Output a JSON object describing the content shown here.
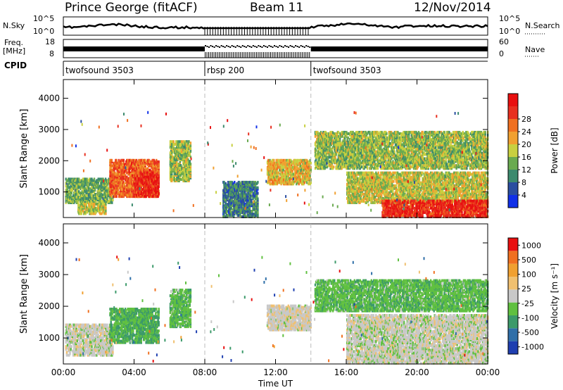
{
  "header": {
    "station": "Prince George (fitACF)",
    "beam": "Beam 11",
    "date": "12/Nov/2014"
  },
  "top_panels": {
    "nsky_label": "N.Sky",
    "nsky_tick_top": "10^5",
    "nsky_tick_bottom": "10^0",
    "nsearch_label": "N.Search",
    "nsearch_tick_top": "10^5",
    "nsearch_tick_bottom": "10^0",
    "freq_label": "Freq.",
    "freq_unit": "[MHz]",
    "freq_tick_top": "18",
    "freq_tick_bottom": "8",
    "nave_label": "Nave",
    "nave_tick_top": "60",
    "nave_tick_bottom": "0",
    "cpid_label": "CPID",
    "cpid_segments": [
      "twofsound 3503",
      "rbsp 200",
      "twofsound 3503"
    ]
  },
  "power_scale": {
    "label": "Power [dB]",
    "ticks": [
      "4",
      "8",
      "12",
      "16",
      "20",
      "24",
      "28"
    ],
    "colors": [
      "#1030e8",
      "#2a4ea0",
      "#3c8a6e",
      "#6aaa50",
      "#c8d040",
      "#f0a030",
      "#f07020",
      "#e83020",
      "#e81010"
    ]
  },
  "velocity_scale": {
    "label": "Velocity [m s⁻¹]",
    "ticks": [
      "1000",
      "500",
      "100",
      "25",
      "-25",
      "-100",
      "-500",
      "-1000"
    ],
    "colors": [
      "#1f3fb0",
      "#2f6fa8",
      "#3c9a6a",
      "#60c040",
      "#c8c8c8",
      "#f0c070",
      "#f0a030",
      "#f07020",
      "#e81010"
    ]
  },
  "chart_data": [
    {
      "type": "heatmap",
      "title": "Power",
      "xlabel": "Time UT",
      "ylabel": "Slant Range [km]",
      "xticks": [
        "00:00",
        "04:00",
        "08:00",
        "12:00",
        "16:00",
        "20:00",
        "00:00"
      ],
      "yticks": [
        "1000",
        "2000",
        "3000",
        "4000"
      ],
      "xlim_hours": [
        0,
        24
      ],
      "ylim_km": [
        180,
        4600
      ],
      "mode_change_hours": [
        8,
        14
      ],
      "scatter_regions": [
        {
          "t0": 0.1,
          "t1": 2.8,
          "r0": 700,
          "r1": 1500,
          "dB": 12
        },
        {
          "t0": 0.8,
          "t1": 2.4,
          "r0": 350,
          "r1": 700,
          "dB": 16
        },
        {
          "t0": 2.6,
          "t1": 5.4,
          "r0": 900,
          "r1": 2100,
          "dB": 24
        },
        {
          "t0": 4.0,
          "t1": 5.4,
          "r0": 900,
          "r1": 1700,
          "dB": 28
        },
        {
          "t0": 6.0,
          "t1": 7.2,
          "r0": 1400,
          "r1": 2700,
          "dB": 14
        },
        {
          "t0": 9.0,
          "t1": 11.0,
          "r0": 250,
          "r1": 1400,
          "dB": 8
        },
        {
          "t0": 11.5,
          "t1": 14.0,
          "r0": 1300,
          "r1": 2100,
          "dB": 18
        },
        {
          "t0": 14.2,
          "t1": 24.0,
          "r0": 1800,
          "r1": 3000,
          "dB": 14
        },
        {
          "t0": 16.0,
          "t1": 24.0,
          "r0": 700,
          "r1": 1700,
          "dB": 16
        },
        {
          "t0": 18.0,
          "t1": 24.0,
          "r0": 250,
          "r1": 800,
          "dB": 28
        }
      ]
    },
    {
      "type": "heatmap",
      "title": "Velocity",
      "xlabel": "Time UT",
      "ylabel": "Slant Range [km]",
      "xticks": [
        "00:00",
        "04:00",
        "08:00",
        "12:00",
        "16:00",
        "20:00",
        "00:00"
      ],
      "yticks": [
        "1000",
        "2000",
        "3000",
        "4000"
      ],
      "xlim_hours": [
        0,
        24
      ],
      "ylim_km": [
        180,
        4600
      ],
      "mode_change_hours": [
        8,
        14
      ],
      "scatter_regions": [
        {
          "t0": 0.1,
          "t1": 2.8,
          "r0": 500,
          "r1": 1500,
          "vel": 0
        },
        {
          "t0": 2.6,
          "t1": 5.4,
          "r0": 900,
          "r1": 2000,
          "vel": -400
        },
        {
          "t0": 6.0,
          "t1": 7.2,
          "r0": 1400,
          "r1": 2600,
          "vel": -300
        },
        {
          "t0": 11.5,
          "t1": 14.0,
          "r0": 1300,
          "r1": 2100,
          "vel": 50
        },
        {
          "t0": 14.2,
          "t1": 24.0,
          "r0": 1900,
          "r1": 2900,
          "vel": -300
        },
        {
          "t0": 16.0,
          "t1": 24.0,
          "r0": 250,
          "r1": 1800,
          "vel": 0
        }
      ]
    }
  ],
  "xaxis_title": "Time UT"
}
